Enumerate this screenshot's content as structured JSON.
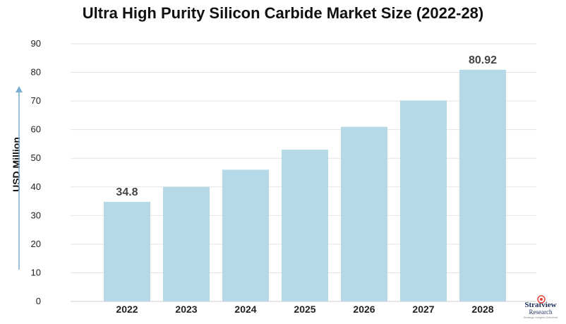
{
  "colors": {
    "bar": "#b5d9e6",
    "grid": "#e3e3e3",
    "axis": "#cfcfcf",
    "arrow": "#7aaed2",
    "logo_accent": "#e1463d"
  },
  "logo": {
    "name": "Stratview",
    "sub": "Research",
    "tagline": "Strategic Insights Delivered"
  },
  "chart_data": {
    "type": "bar",
    "title": "Ultra High Purity Silicon Carbide Market Size (2022-28)",
    "xlabel": "",
    "ylabel": "USD Million",
    "categories": [
      "2022",
      "2023",
      "2024",
      "2025",
      "2026",
      "2027",
      "2028"
    ],
    "values": [
      34.8,
      40,
      46,
      53,
      61,
      70.2,
      80.92
    ],
    "data_labels": [
      {
        "index": 0,
        "text": "34.8"
      },
      {
        "index": 6,
        "text": "80.92"
      }
    ],
    "ylim": [
      0,
      90
    ],
    "yticks": [
      0,
      10,
      20,
      30,
      40,
      50,
      60,
      70,
      80,
      90
    ],
    "grid": true,
    "legend": "none"
  }
}
